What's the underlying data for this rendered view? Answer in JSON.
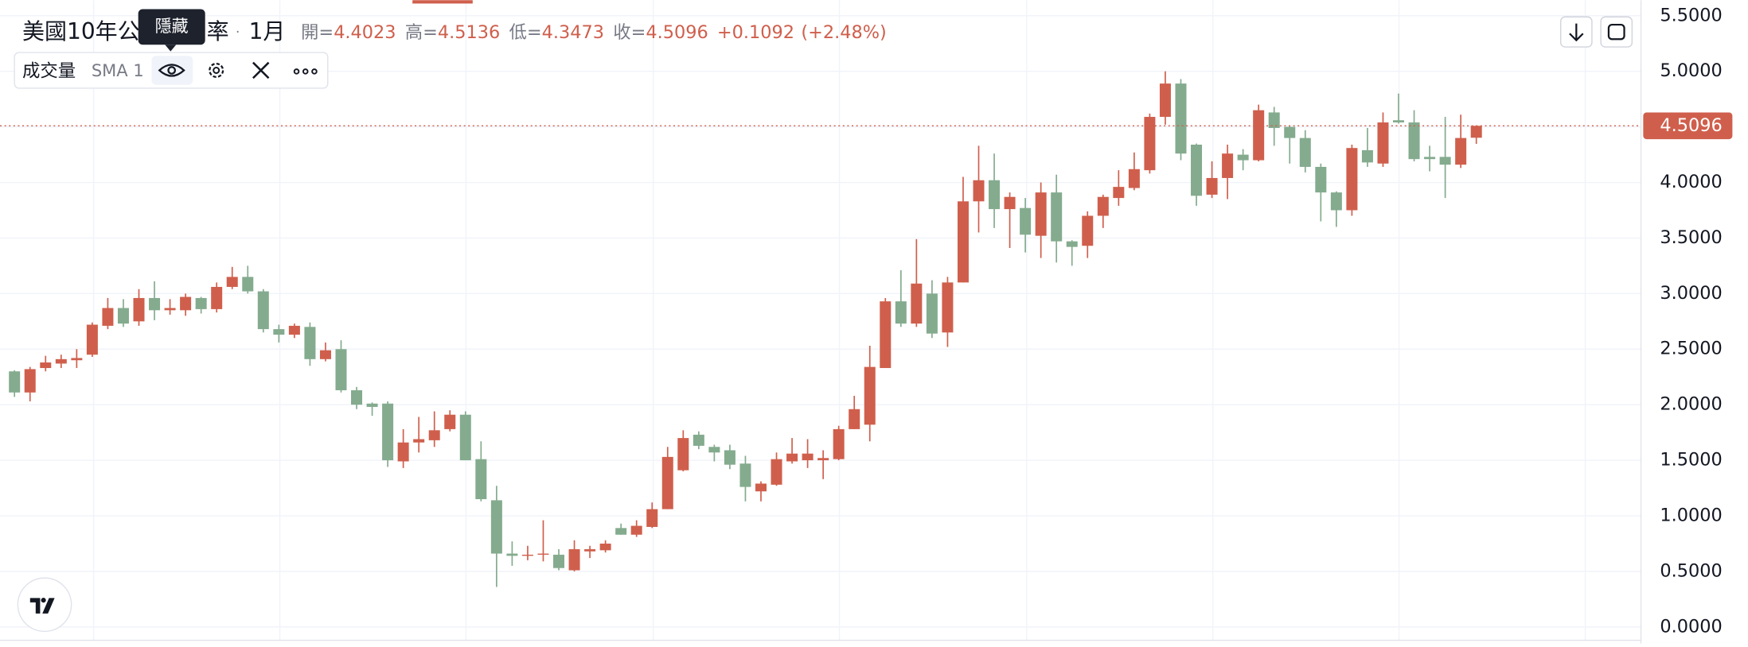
{
  "chart_data": {
    "type": "candlestick",
    "title": "美國10年公債殖利率",
    "interval": "1月",
    "ohlc_labels": [
      "開=",
      "高=",
      "低=",
      "收="
    ],
    "change_label": "+0.1092",
    "change_pct_label": "(+2.48%)",
    "indicator_name": "成交量",
    "indicator_params": "SMA 1",
    "tooltip": "隱藏",
    "up_color": "#cf5f4c",
    "down_color": "#84ab8e",
    "open": [
      2.3,
      2.11,
      2.33,
      2.37,
      2.4,
      2.45,
      2.71,
      2.87,
      2.75,
      2.96,
      2.85,
      2.85,
      2.96,
      2.86,
      3.06,
      3.15,
      3.02,
      2.68,
      2.63,
      2.7,
      2.41,
      2.5,
      2.13,
      2.01,
      2.01,
      1.49,
      1.66,
      1.68,
      1.78,
      1.91,
      1.51,
      1.14,
      0.66,
      0.64,
      0.65,
      0.65,
      0.51,
      0.68,
      0.69,
      0.89,
      0.83,
      0.9,
      1.06,
      1.41,
      1.73,
      1.62,
      1.59,
      1.47,
      1.22,
      1.28,
      1.49,
      1.5,
      1.5,
      1.51,
      1.78,
      1.82,
      2.33,
      2.93,
      2.73,
      3.0,
      2.65,
      3.1,
      3.83,
      4.02,
      3.76,
      3.77,
      3.52,
      3.91,
      3.47,
      3.43,
      3.7,
      3.86,
      3.95,
      4.11,
      4.59,
      4.89,
      4.34,
      3.89,
      4.04,
      4.25,
      4.2,
      4.63,
      4.5,
      4.4,
      4.14,
      3.91,
      3.75,
      4.29,
      4.17,
      4.56,
      4.54,
      4.23,
      4.23,
      4.16,
      4.4023
    ],
    "high": [
      2.31,
      2.34,
      2.44,
      2.45,
      2.5,
      2.74,
      2.96,
      2.95,
      3.04,
      3.11,
      2.95,
      3.0,
      2.97,
      3.1,
      3.24,
      3.25,
      3.04,
      2.72,
      2.73,
      2.74,
      2.56,
      2.58,
      2.16,
      2.02,
      2.03,
      1.78,
      1.89,
      1.94,
      1.95,
      1.94,
      1.67,
      1.27,
      0.77,
      0.73,
      0.96,
      0.7,
      0.78,
      0.73,
      0.78,
      0.93,
      0.96,
      1.12,
      1.62,
      1.77,
      1.76,
      1.64,
      1.64,
      1.54,
      1.31,
      1.57,
      1.7,
      1.69,
      1.59,
      1.81,
      2.08,
      2.53,
      2.96,
      3.21,
      3.49,
      3.12,
      3.15,
      4.05,
      4.33,
      4.26,
      3.91,
      3.86,
      4.0,
      4.07,
      3.48,
      3.74,
      3.89,
      4.11,
      4.27,
      4.62,
      5.0,
      4.93,
      4.35,
      4.19,
      4.34,
      4.3,
      4.7,
      4.68,
      4.51,
      4.47,
      4.17,
      3.92,
      4.34,
      4.49,
      4.63,
      4.8,
      4.65,
      4.33,
      4.59,
      4.61,
      4.5136
    ],
    "low": [
      2.07,
      2.03,
      2.3,
      2.33,
      2.33,
      2.43,
      2.68,
      2.7,
      2.71,
      2.76,
      2.81,
      2.8,
      2.82,
      2.83,
      3.04,
      3.0,
      2.65,
      2.56,
      2.6,
      2.35,
      2.39,
      2.11,
      1.96,
      1.9,
      1.44,
      1.43,
      1.57,
      1.62,
      1.76,
      1.5,
      1.13,
      0.36,
      0.55,
      0.6,
      0.59,
      0.51,
      0.5,
      0.62,
      0.67,
      0.83,
      0.81,
      0.89,
      1.06,
      1.4,
      1.6,
      1.49,
      1.42,
      1.13,
      1.13,
      1.27,
      1.47,
      1.43,
      1.33,
      1.5,
      1.78,
      1.67,
      2.33,
      2.7,
      2.7,
      2.6,
      2.52,
      3.1,
      3.55,
      3.59,
      3.41,
      3.37,
      3.32,
      3.28,
      3.25,
      3.32,
      3.59,
      3.79,
      3.93,
      4.08,
      4.52,
      4.2,
      3.79,
      3.86,
      3.85,
      4.11,
      4.19,
      4.33,
      4.17,
      4.09,
      3.65,
      3.6,
      3.7,
      4.14,
      4.14,
      4.53,
      4.19,
      4.1,
      3.86,
      4.13,
      4.3473
    ],
    "close": [
      2.11,
      2.32,
      2.38,
      2.41,
      2.42,
      2.72,
      2.87,
      2.73,
      2.96,
      2.85,
      2.87,
      2.97,
      2.86,
      3.06,
      3.15,
      3.02,
      2.68,
      2.63,
      2.71,
      2.41,
      2.49,
      2.13,
      2.0,
      1.98,
      1.5,
      1.66,
      1.69,
      1.77,
      1.91,
      1.5,
      1.15,
      0.66,
      0.64,
      0.65,
      0.66,
      0.53,
      0.7,
      0.7,
      0.75,
      0.83,
      0.91,
      1.06,
      1.53,
      1.7,
      1.63,
      1.57,
      1.46,
      1.26,
      1.29,
      1.51,
      1.56,
      1.56,
      1.52,
      1.78,
      1.96,
      2.34,
      2.93,
      2.73,
      3.09,
      2.64,
      3.1,
      3.83,
      4.02,
      3.76,
      3.87,
      3.53,
      3.91,
      3.47,
      3.42,
      3.7,
      3.87,
      3.96,
      4.12,
      4.59,
      4.89,
      4.26,
      3.88,
      4.04,
      4.26,
      4.2,
      4.65,
      4.49,
      4.4,
      4.14,
      3.91,
      3.75,
      4.31,
      4.18,
      4.54,
      4.54,
      4.21,
      4.21,
      4.16,
      4.4,
      4.5096
    ],
    "ylim": [
      -0.12,
      5.64
    ],
    "yticks": [
      {
        "value": 0,
        "label": "0.0000"
      },
      {
        "value": 0.5,
        "label": "0.5000"
      },
      {
        "value": 1,
        "label": "1.0000"
      },
      {
        "value": 1.5,
        "label": "1.5000"
      },
      {
        "value": 2,
        "label": "2.0000"
      },
      {
        "value": 2.5,
        "label": "2.5000"
      },
      {
        "value": 3,
        "label": "3.0000"
      },
      {
        "value": 3.5,
        "label": "3.5000"
      },
      {
        "value": 4,
        "label": "4.0000"
      },
      {
        "value": 4.5,
        "label": "4.5000"
      },
      {
        "value": 5,
        "label": "5.0000"
      },
      {
        "value": 5.5,
        "label": "5.5000"
      }
    ],
    "grid": true,
    "last_price_line": true
  }
}
